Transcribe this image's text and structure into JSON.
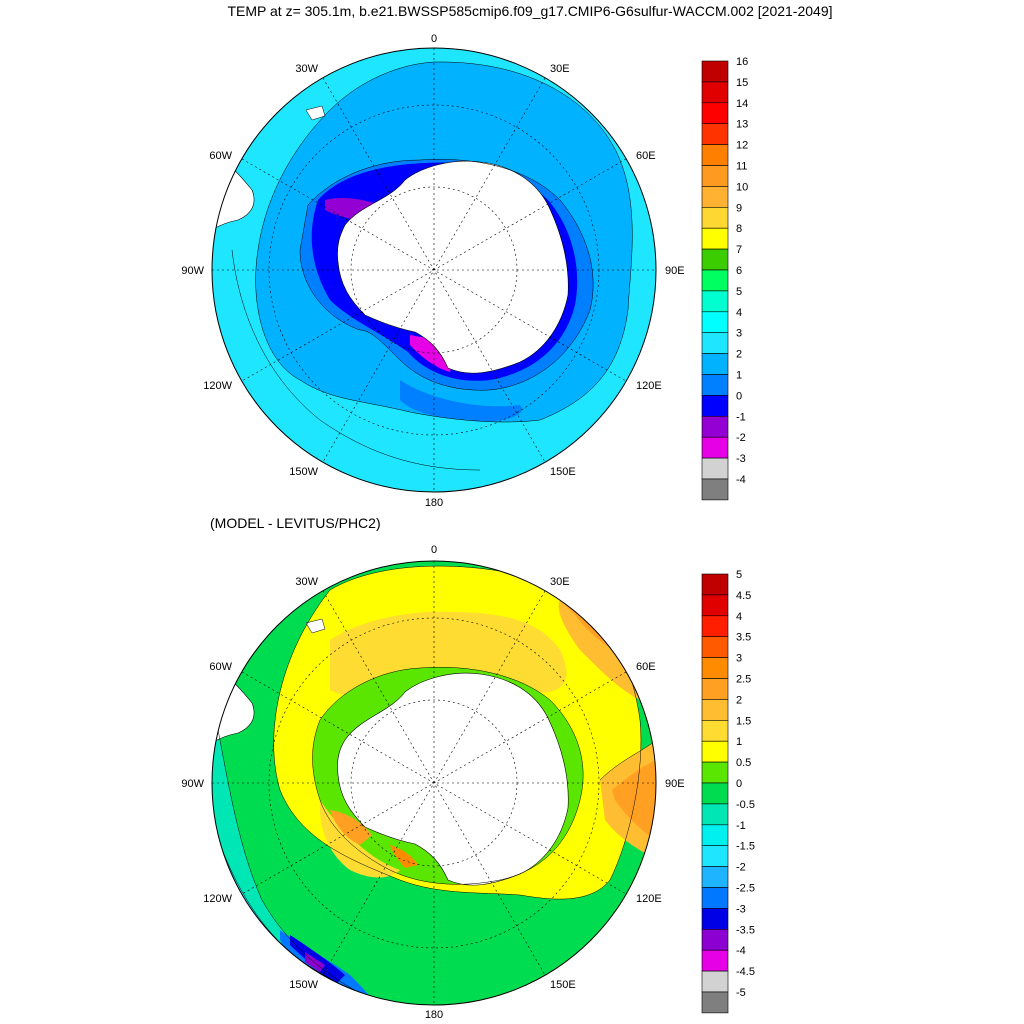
{
  "title": "TEMP at z= 305.1m, b.e21.BWSSP585cmip6.f09_g17.CMIP6-G6sulfur-WACCM.002 [2021-2049]",
  "subtitle": "(MODEL - LEVITUS/PHC2)",
  "longitude_labels": [
    "0",
    "30E",
    "60E",
    "90E",
    "120E",
    "150E",
    "180",
    "150W",
    "120W",
    "90W",
    "60W",
    "30W"
  ],
  "panels": [
    {
      "name": "model-temperature",
      "colorbar": {
        "labels": [
          "16",
          "15",
          "14",
          "13",
          "12",
          "11",
          "10",
          "9",
          "8",
          "7",
          "6",
          "5",
          "4",
          "3",
          "2",
          "1",
          "0",
          "-1",
          "-2",
          "-3",
          "-4"
        ],
        "colors": [
          "#c00000",
          "#e00000",
          "#ff0000",
          "#ff3300",
          "#ff7f00",
          "#ff9a20",
          "#ffb232",
          "#ffd732",
          "#ffff00",
          "#3ccd00",
          "#00ff60",
          "#00ffd0",
          "#00ffff",
          "#1ee6ff",
          "#00b2ff",
          "#007fff",
          "#0000ff",
          "#9400d3",
          "#e600e6",
          "#d2d2d2",
          "#7f7f7f"
        ]
      }
    },
    {
      "name": "model-minus-levitus",
      "colorbar": {
        "labels": [
          "5",
          "4.5",
          "4",
          "3.5",
          "3",
          "2.5",
          "2",
          "1.5",
          "1",
          "0.5",
          "0",
          "-0.5",
          "-1",
          "-1.5",
          "-2",
          "-2.5",
          "-3",
          "-3.5",
          "-4",
          "-4.5",
          "-5"
        ],
        "colors": [
          "#c00000",
          "#e00000",
          "#ff1e00",
          "#ff5a00",
          "#ff8c00",
          "#ffa023",
          "#ffbe32",
          "#ffdc32",
          "#ffff00",
          "#5ae600",
          "#00dc50",
          "#00e6b4",
          "#00f0f0",
          "#1ee6ff",
          "#1eb4ff",
          "#0078ff",
          "#0000e6",
          "#8c00d2",
          "#e600e6",
          "#d2d2d2",
          "#7f7f7f"
        ]
      }
    }
  ]
}
